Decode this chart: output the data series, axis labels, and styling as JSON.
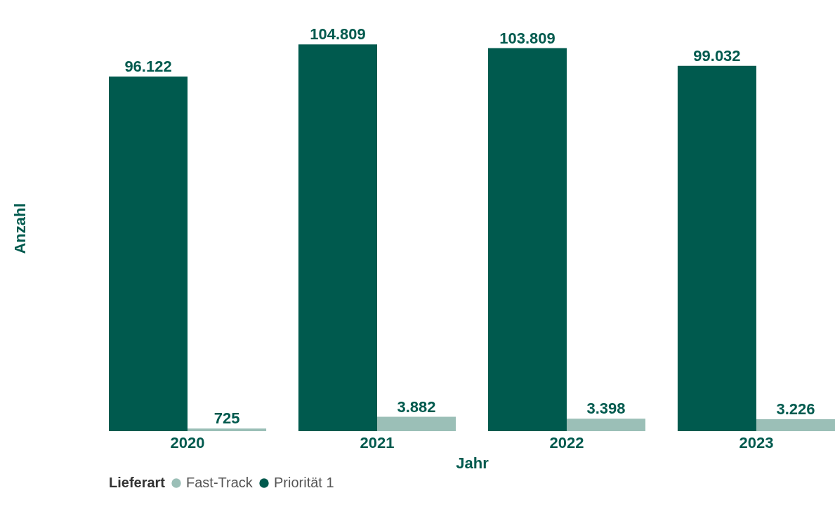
{
  "chart_data": {
    "type": "bar",
    "xlabel": "Jahr",
    "ylabel": "Anzahl",
    "legend_title": "Lieferart",
    "legend": "bottom",
    "categories": [
      "2020",
      "2021",
      "2022",
      "2023"
    ],
    "series": [
      {
        "name": "Fast-Track",
        "color": "#9bbfb7",
        "values": [
          725,
          3882,
          3398,
          3226
        ],
        "value_labels": [
          "725",
          "3.882",
          "3.398",
          "3.226"
        ]
      },
      {
        "name": "Priorität 1",
        "color": "#005a4e",
        "values": [
          96122,
          104809,
          103809,
          99032
        ],
        "value_labels": [
          "96.122",
          "104.809",
          "103.809",
          "99.032"
        ]
      }
    ]
  }
}
